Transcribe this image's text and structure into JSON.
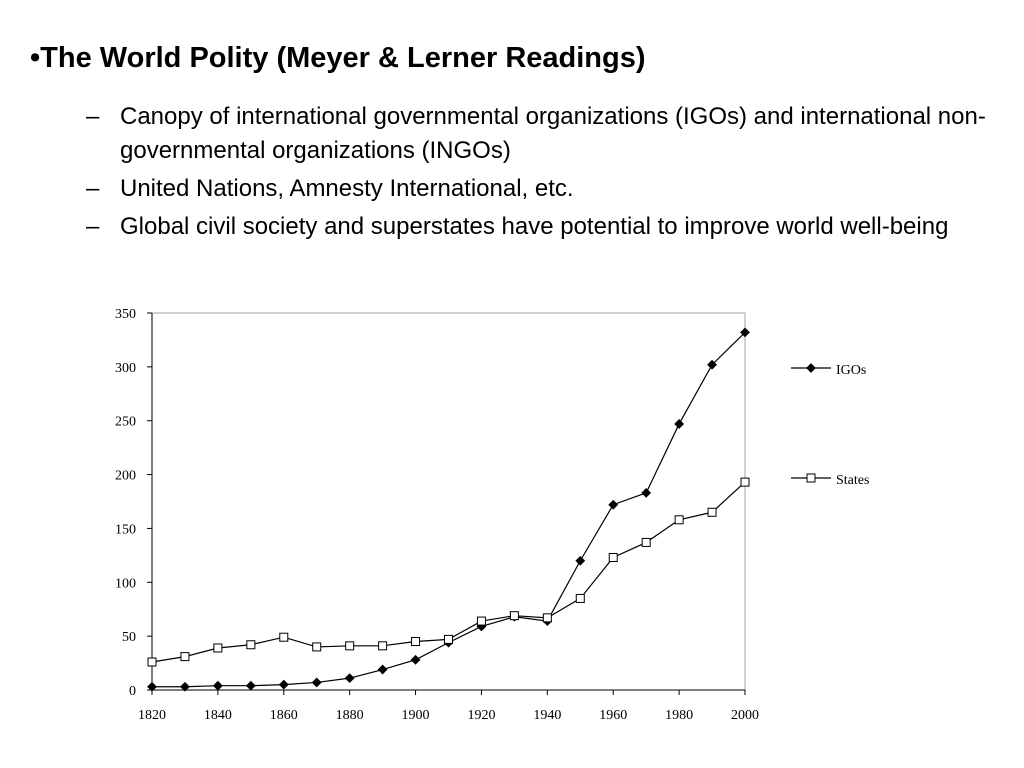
{
  "slide": {
    "title": "•The World Polity (Meyer & Lerner Readings)",
    "bullets": [
      {
        "dash": "–",
        "text": "Canopy of international governmental organizations (IGOs) and international non-governmental organizations (INGOs)"
      },
      {
        "dash": "–",
        "text": "United Nations, Amnesty International, etc."
      },
      {
        "dash": "–",
        "text": "Global civil society and superstates have potential to improve world well-being"
      }
    ]
  },
  "chart_data": {
    "type": "line",
    "title": "",
    "xlabel": "",
    "ylabel": "",
    "x": [
      1820,
      1830,
      1840,
      1850,
      1860,
      1870,
      1880,
      1890,
      1900,
      1910,
      1920,
      1930,
      1940,
      1950,
      1960,
      1970,
      1980,
      1990,
      2000
    ],
    "xlim": [
      1820,
      2000
    ],
    "ylim": [
      0,
      350
    ],
    "xticks": [
      "1820",
      "1840",
      "1860",
      "1880",
      "1900",
      "1920",
      "1940",
      "1960",
      "1980",
      "2000"
    ],
    "yticks": [
      "0",
      "50",
      "100",
      "150",
      "200",
      "250",
      "300",
      "350"
    ],
    "grid": false,
    "legend_position": "right",
    "series": [
      {
        "name": "IGOs",
        "marker": "filled-diamond",
        "color": "#000000",
        "values": [
          3,
          3,
          4,
          4,
          5,
          7,
          11,
          19,
          28,
          44,
          59,
          68,
          64,
          120,
          172,
          183,
          247,
          302,
          332
        ]
      },
      {
        "name": "States",
        "marker": "open-square",
        "color": "#000000",
        "values": [
          26,
          31,
          39,
          42,
          49,
          40,
          41,
          41,
          45,
          47,
          64,
          69,
          67,
          85,
          123,
          137,
          158,
          165,
          193
        ]
      }
    ]
  }
}
